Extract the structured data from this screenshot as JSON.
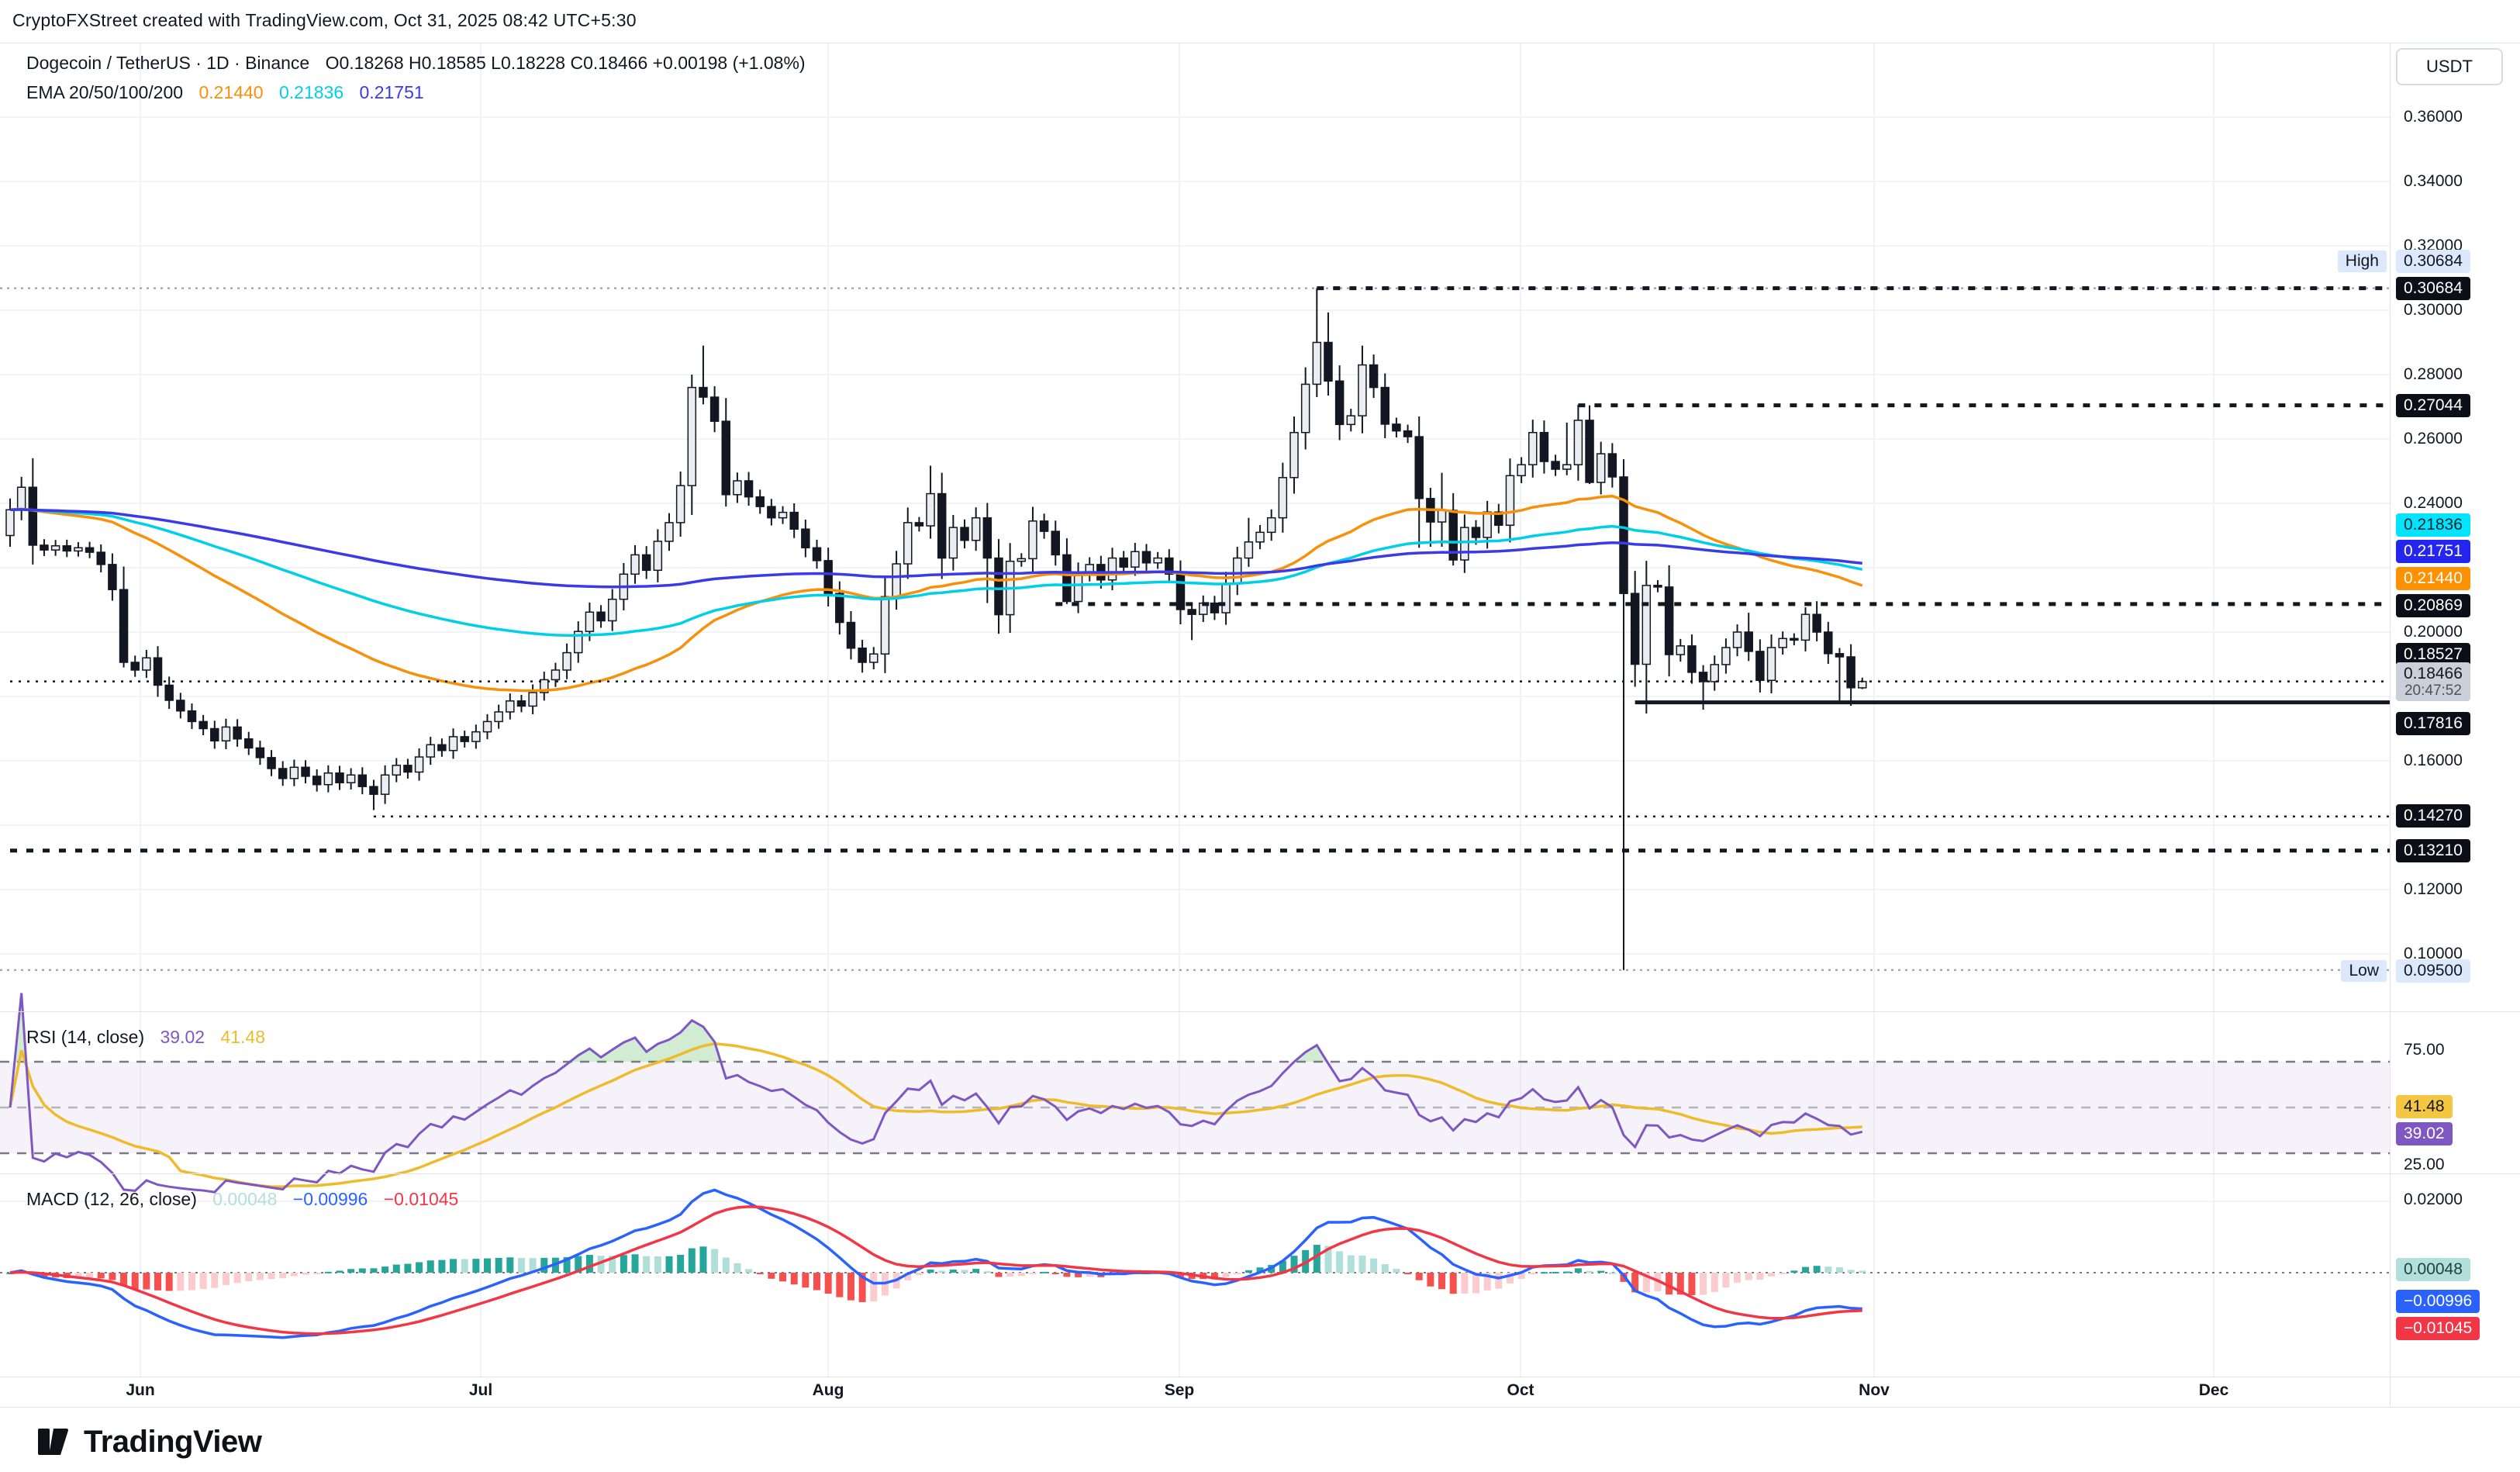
{
  "header": {
    "attribution": "CryptoFXStreet created with TradingView.com, Oct 31, 2025 08:42 UTC+5:30"
  },
  "symbol_legend": {
    "title": "Dogecoin / TetherUS · 1D · Binance",
    "ohlc": "O0.18268   H0.18585   L0.18228   C0.18466   +0.00198 (+1.08%)"
  },
  "ema_legend": {
    "title": "EMA 20/50/100/200",
    "values": [
      {
        "text": "0.21440",
        "color": "#F7900A"
      },
      {
        "text": "0.21836",
        "color": "#00CFE8"
      },
      {
        "text": "0.21751",
        "color": "#3A3AE8"
      }
    ]
  },
  "rsi_legend": {
    "title": "RSI (14, close)",
    "values": [
      {
        "text": "39.02",
        "color": "#7E57C2"
      },
      {
        "text": "41.48",
        "color": "#EFBB2A"
      }
    ]
  },
  "macd_legend": {
    "title": "MACD (12, 26, close)",
    "values": [
      {
        "text": "0.00048",
        "color": "#B2DFDB"
      },
      {
        "text": "−0.00996",
        "color": "#2962FF"
      },
      {
        "text": "−0.01045",
        "color": "#F23645"
      }
    ]
  },
  "price_axis": {
    "currency": "USDT",
    "ticks": [
      {
        "text": "0.36000",
        "price": 0.36
      },
      {
        "text": "0.34000",
        "price": 0.34
      },
      {
        "text": "0.32000",
        "price": 0.32
      },
      {
        "text": "0.30000",
        "price": 0.3
      },
      {
        "text": "0.28000",
        "price": 0.28
      },
      {
        "text": "0.26000",
        "price": 0.26
      },
      {
        "text": "0.24000",
        "price": 0.24
      },
      {
        "text": "0.20000",
        "price": 0.2
      },
      {
        "text": "0.16000",
        "price": 0.16
      },
      {
        "text": "0.12000",
        "price": 0.12
      },
      {
        "text": "0.10000",
        "price": 0.1
      }
    ],
    "badges": [
      {
        "text": "0.30684",
        "y": 372,
        "style": "black"
      },
      {
        "text": "0.27044",
        "y": 523,
        "style": "black"
      },
      {
        "text": "0.21836",
        "y": 677,
        "style": "cyan"
      },
      {
        "text": "0.21751",
        "y": 711,
        "style": "blue"
      },
      {
        "text": "0.21440",
        "y": 746,
        "style": "orange"
      },
      {
        "text": "0.20869",
        "y": 781,
        "style": "black"
      },
      {
        "text": "0.18527",
        "y": 844,
        "style": "black"
      },
      {
        "text": "0.18466",
        "sub": "20:47:52",
        "y": 879,
        "style": "gray"
      },
      {
        "text": "0.17816",
        "y": 933,
        "style": "black"
      },
      {
        "text": "0.14270",
        "y": 1052,
        "style": "black"
      },
      {
        "text": "0.13210",
        "y": 1097,
        "style": "black"
      }
    ],
    "high_marker": {
      "word": "High",
      "value": "0.30684",
      "y": 337
    },
    "low_marker": {
      "word": "Low",
      "value": "0.09500",
      "y": 1252
    }
  },
  "rsi_axis": {
    "ticks": [
      {
        "text": "75.00",
        "y": 1354
      },
      {
        "text": "25.00",
        "y": 1502
      }
    ],
    "badges": [
      {
        "text": "41.48",
        "y": 1427,
        "style": "yellow"
      },
      {
        "text": "39.02",
        "y": 1462,
        "style": "purple"
      }
    ]
  },
  "macd_axis": {
    "ticks": [
      {
        "text": "0.02000",
        "y": 1547
      }
    ],
    "badges": [
      {
        "text": "0.00048",
        "y": 1637,
        "style": "teal"
      },
      {
        "text": "−0.00996",
        "y": 1678,
        "style": "macdblue"
      },
      {
        "text": "−0.01045",
        "y": 1713,
        "style": "red"
      }
    ]
  },
  "time_axis": {
    "months": [
      {
        "label": "Jun",
        "x": 181
      },
      {
        "label": "Jul",
        "x": 620
      },
      {
        "label": "Aug",
        "x": 1068
      },
      {
        "label": "Sep",
        "x": 1521
      },
      {
        "label": "Oct",
        "x": 1961
      },
      {
        "label": "Nov",
        "x": 2417
      },
      {
        "label": "Dec",
        "x": 2855
      }
    ]
  },
  "logo": {
    "text": "TradingView"
  },
  "colors": {
    "up_fill": "#ECEDF1",
    "down_fill": "#131722",
    "candle_stroke": "#131722",
    "ema_fast": "#F7900A",
    "ema_mid": "#00CFE8",
    "ema_slow": "#3A3AE8",
    "rsi_line": "#7E57C2",
    "rsi_ma": "#EFBB2A",
    "rsi_band": "rgba(126,87,194,0.08)",
    "macd_line": "#2962FF",
    "macd_signal": "#F23645",
    "hist_pos_strong": "#26A69A",
    "hist_pos_weak": "#AFDFD8",
    "hist_neg_strong": "#F5504E",
    "hist_neg_weak": "#FBCBCE",
    "grid": "#F2F3F7",
    "border": "#E0E3EB",
    "faint_line": "#9598A1",
    "level_line": "#131722"
  },
  "chart_data": [
    {
      "type": "candlestick",
      "title": "Dogecoin / TetherUS, 1D, Binance",
      "start_date": "2025-05-20",
      "interval": "1D",
      "ylabel": "USDT",
      "ylim": [
        0.085,
        0.375
      ],
      "note": "open of each candle equals previous close; candle_overrides give exact O/H/L/C where read from image",
      "closes": [
        0.238,
        0.245,
        0.227,
        0.2255,
        0.2268,
        0.2252,
        0.2262,
        0.2248,
        0.221,
        0.2132,
        0.1906,
        0.1882,
        0.192,
        0.1835,
        0.1788,
        0.1755,
        0.1722,
        0.17,
        0.1662,
        0.1705,
        0.1668,
        0.164,
        0.161,
        0.1576,
        0.1545,
        0.158,
        0.1552,
        0.1526,
        0.1562,
        0.1532,
        0.1556,
        0.152,
        0.1496,
        0.1556,
        0.1586,
        0.1565,
        0.1612,
        0.165,
        0.1632,
        0.1675,
        0.166,
        0.169,
        0.1722,
        0.1752,
        0.1786,
        0.177,
        0.1812,
        0.1852,
        0.1882,
        0.1936,
        0.2002,
        0.2062,
        0.2035,
        0.2102,
        0.218,
        0.224,
        0.2192,
        0.2282,
        0.234,
        0.2455,
        0.276,
        0.273,
        0.2655,
        0.2427,
        0.247,
        0.242,
        0.239,
        0.2355,
        0.2372,
        0.232,
        0.2262,
        0.2222,
        0.212,
        0.203,
        0.195,
        0.1906,
        0.1932,
        0.211,
        0.2212,
        0.234,
        0.233,
        0.243,
        0.223,
        0.2325,
        0.2285,
        0.2355,
        0.223,
        0.2054,
        0.222,
        0.2228,
        0.2345,
        0.2313,
        0.224,
        0.2095,
        0.218,
        0.221,
        0.2162,
        0.223,
        0.2202,
        0.225,
        0.2215,
        0.223,
        0.218,
        0.207,
        0.2055,
        0.209,
        0.206,
        0.215,
        0.223,
        0.228,
        0.231,
        0.2355,
        0.248,
        0.262,
        0.277,
        0.29,
        0.278,
        0.2645,
        0.2672,
        0.283,
        0.276,
        0.2646,
        0.2625,
        0.2607,
        0.2415,
        0.2342,
        0.2378,
        0.2224,
        0.2325,
        0.2294,
        0.2373,
        0.2332,
        0.2486,
        0.252,
        0.262,
        0.253,
        0.2506,
        0.252,
        0.2658,
        0.2465,
        0.2554,
        0.2482,
        0.212,
        0.19,
        0.2145,
        0.214,
        0.193,
        0.1957,
        0.1875,
        0.1846,
        0.1899,
        0.1952,
        0.2,
        0.194,
        0.185,
        0.1952,
        0.198,
        0.1975,
        0.2055,
        0.2,
        0.1933,
        0.1923,
        0.1827,
        0.18466
      ],
      "first_open": 0.23,
      "candle_overrides": {
        "2": {
          "h": 0.254
        },
        "10": {
          "l": 0.189
        },
        "32": {
          "l": 0.1447
        },
        "60": {
          "h": 0.28
        },
        "61": {
          "h": 0.289
        },
        "63": {
          "l": 0.239
        },
        "75": {
          "l": 0.1874
        },
        "81": {
          "h": 0.2517
        },
        "86": {
          "l": 0.209
        },
        "93": {
          "l": 0.2087
        },
        "103": {
          "l": 0.2024
        },
        "104": {
          "l": 0.1975
        },
        "109": {
          "h": 0.2355
        },
        "115": {
          "h": 0.30684,
          "l": 0.273
        },
        "116": {
          "h": 0.2993
        },
        "119": {
          "h": 0.289
        },
        "124": {
          "l": 0.2262
        },
        "125": {
          "l": 0.2265
        },
        "126": {
          "h": 0.2495,
          "l": 0.2265
        },
        "127": {
          "l": 0.2207
        },
        "137": {
          "h": 0.2651
        },
        "138": {
          "h": 0.2706
        },
        "139": {
          "h": 0.27044,
          "l": 0.246
        },
        "142": {
          "h": 0.2537,
          "l": 0.095,
          "c": 0.212
        },
        "144": {
          "l": 0.1747
        },
        "149": {
          "l": 0.1759
        },
        "152": {
          "h": 0.2024
        },
        "153": {
          "h": 0.206
        },
        "158": {
          "h": 0.2077
        },
        "159": {
          "h": 0.2096
        },
        "161": {
          "l": 0.1783
        },
        "162": {
          "l": 0.1771
        },
        "163": {
          "o": 0.18268,
          "h": 0.18585,
          "l": 0.18228,
          "c": 0.18466
        }
      },
      "high_in_view": 0.30684,
      "low_in_view": 0.095,
      "levels": [
        {
          "price": 0.30684,
          "style": "dotted-faint",
          "from_index": 0
        },
        {
          "price": 0.30684,
          "style": "dashed-heavy",
          "from_index": 115
        },
        {
          "price": 0.27044,
          "style": "dashed-heavy",
          "from_index": 138
        },
        {
          "price": 0.20869,
          "style": "dashed-heavy",
          "from_index": 92
        },
        {
          "price": 0.18466,
          "style": "dotted-fine",
          "from_index": 0
        },
        {
          "price": 0.17816,
          "style": "solid",
          "from_index": 143
        },
        {
          "price": 0.1427,
          "style": "dotted-fine",
          "from_index": 32
        },
        {
          "price": 0.1321,
          "style": "dashed-heavy",
          "from_index": 0
        },
        {
          "price": 0.095,
          "style": "dotted-faint",
          "from_index": 0
        }
      ],
      "emas": [
        {
          "period": 50,
          "last_label": "0.21440"
        },
        {
          "period": 100,
          "last_label": "0.21836"
        },
        {
          "period": 200,
          "last_label": "0.21751"
        }
      ]
    },
    {
      "type": "line",
      "name": "RSI (14, close)",
      "derived_from": "closes of panel 1, Wilder RSI period 14 plus SMA(14) of RSI",
      "last_rsi": 39.02,
      "last_rsi_ma": 41.48,
      "guides": [
        70,
        50,
        30
      ],
      "axis_ticks": [
        75,
        25
      ]
    },
    {
      "type": "macd",
      "name": "MACD (12, 26, close)",
      "derived_from": "closes of panel 1, EMA12 - EMA26, signal EMA9",
      "last_macd": -0.00996,
      "last_signal": -0.01045,
      "last_histogram": 0.00048,
      "axis_ticks": [
        0.02
      ]
    }
  ]
}
